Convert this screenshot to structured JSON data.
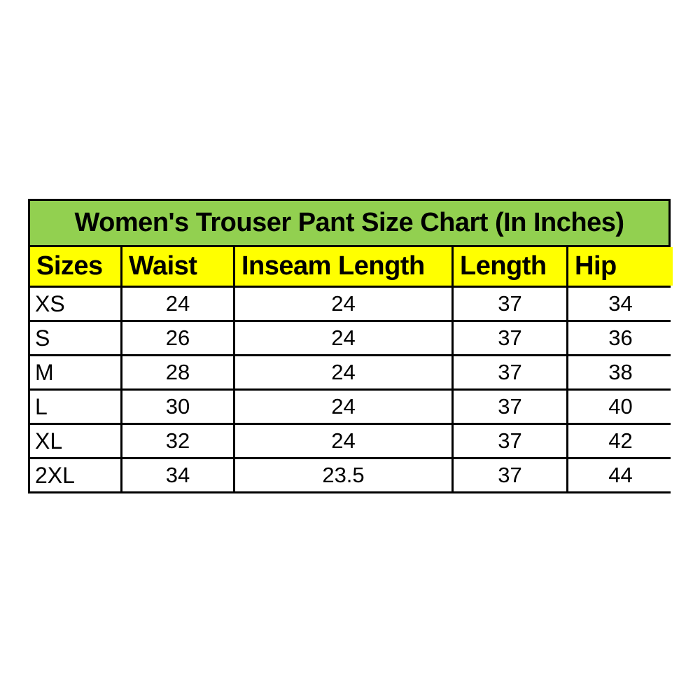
{
  "chart_data": {
    "type": "table",
    "title": "Women's Trouser Pant Size Chart (In Inches)",
    "columns": [
      "Sizes",
      "Waist",
      "Inseam Length",
      "Length",
      "Hip"
    ],
    "rows": [
      [
        "XS",
        "24",
        "24",
        "37",
        "34"
      ],
      [
        "S",
        "26",
        "24",
        "37",
        "36"
      ],
      [
        "M",
        "28",
        "24",
        "37",
        "38"
      ],
      [
        "L",
        "30",
        "24",
        "37",
        "40"
      ],
      [
        "XL",
        "32",
        "24",
        "37",
        "42"
      ],
      [
        "2XL",
        "34",
        "23.5",
        "37",
        "44"
      ]
    ],
    "colors": {
      "title_bg": "#92d050",
      "header_bg": "#ffff00",
      "cell_bg": "#ffffff",
      "grid": "#000000",
      "text": "#000000"
    },
    "layout": {
      "grid": "on",
      "header_style": "bold",
      "first_column_align": "left",
      "value_align": "center"
    }
  }
}
